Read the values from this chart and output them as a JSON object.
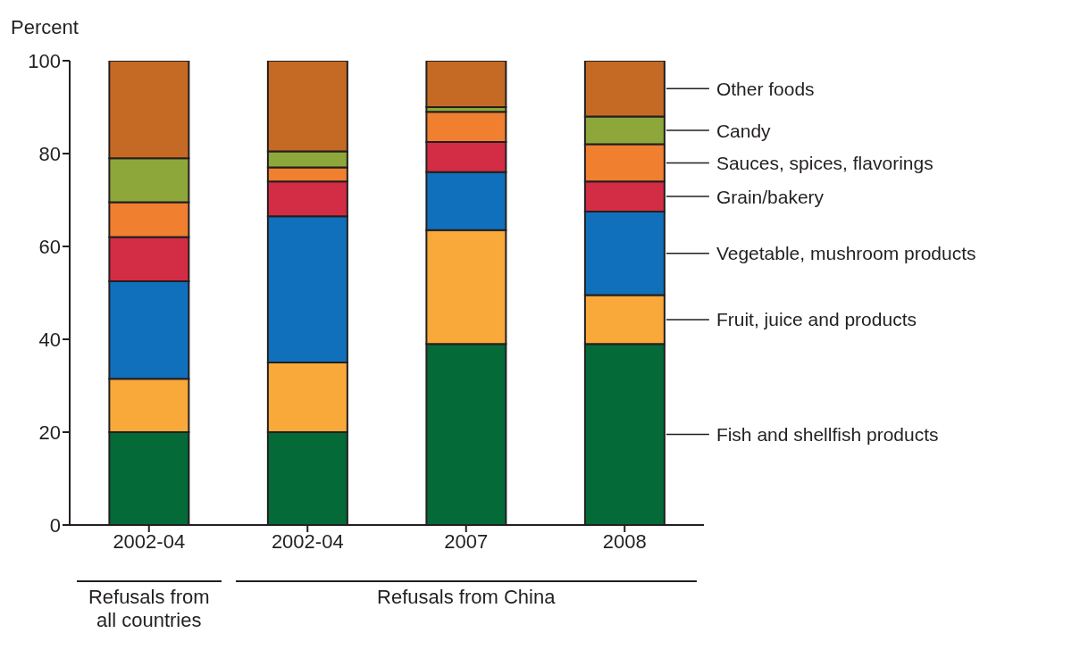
{
  "chart_data": {
    "type": "bar",
    "stacked": true,
    "ylabel": "Percent",
    "categories": [
      "2002-04",
      "2002-04",
      "2007",
      "2008"
    ],
    "series": [
      {
        "name": "Fish and shellfish products",
        "color": "#046a38",
        "values": [
          20,
          20,
          39,
          39
        ]
      },
      {
        "name": "Fruit, juice and products",
        "color": "#f9a93a",
        "values": [
          11.5,
          15,
          24.5,
          10.5
        ]
      },
      {
        "name": "Vegetable, mushroom products",
        "color": "#1170bb",
        "values": [
          21,
          31.5,
          12.5,
          18
        ]
      },
      {
        "name": "Grain/bakery",
        "color": "#d32c45",
        "values": [
          9.5,
          7.5,
          6.5,
          6.5
        ]
      },
      {
        "name": "Sauces, spices, flavorings",
        "color": "#f07f30",
        "values": [
          7.5,
          3,
          6.5,
          8
        ]
      },
      {
        "name": "Candy",
        "color": "#8da73b",
        "values": [
          9.5,
          3.5,
          1,
          6
        ]
      },
      {
        "name": "Other foods",
        "color": "#c56a24",
        "values": [
          21,
          19.5,
          10,
          12
        ]
      }
    ],
    "legend": "right",
    "ylim": [
      0,
      100
    ],
    "yticks": [
      0,
      20,
      40,
      60,
      80,
      100
    ],
    "annotations": [
      "Refusals from all countries",
      "Refusals from China"
    ]
  }
}
